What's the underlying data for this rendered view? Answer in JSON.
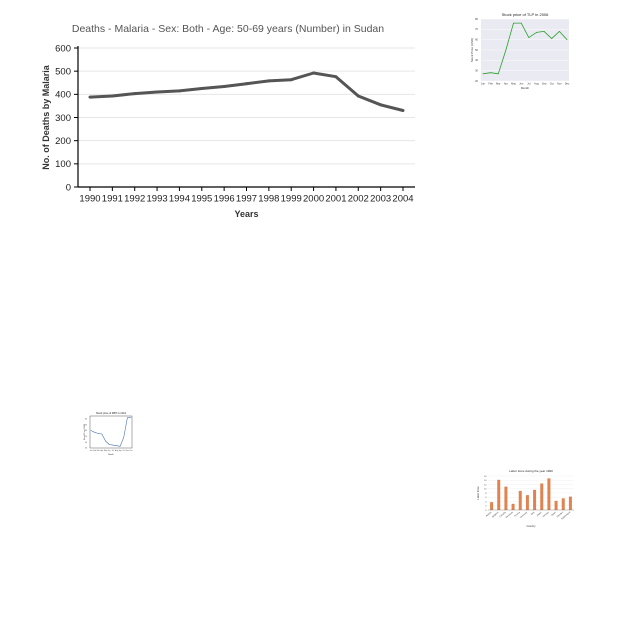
{
  "chart_data": [
    {
      "type": "line",
      "title": "Deaths - Malaria - Sex: Both - Age: 50-69 years (Number) in Sudan",
      "xlabel": "Years",
      "ylabel": "No. of Deaths by Malaria",
      "x": [
        "1990",
        "1991",
        "1992",
        "1993",
        "1994",
        "1995",
        "1996",
        "1997",
        "1998",
        "1999",
        "2000",
        "2001",
        "2002",
        "2003",
        "2004"
      ],
      "series": [
        {
          "values": [
            388,
            393,
            403,
            410,
            415,
            425,
            434,
            446,
            458,
            463,
            492,
            476,
            393,
            355,
            330
          ]
        }
      ],
      "ylim": [
        0,
        600
      ],
      "yticks": [
        "0",
        "100",
        "200",
        "300",
        "400",
        "500",
        "600"
      ],
      "grid": true,
      "colors": {
        "line": "#555555",
        "grid": "#e6e6e6",
        "axis": "#000000",
        "title": "#555555"
      }
    },
    {
      "type": "line",
      "title": "Stock price of TLP in 2006",
      "xlabel": "Month",
      "ylabel": "Stock Price (USD)",
      "x": [
        "Jan",
        "Feb",
        "Mar",
        "Apr",
        "May",
        "Jun",
        "Jul",
        "Aug",
        "Sep",
        "Oct",
        "Nov",
        "Dec"
      ],
      "series": [
        {
          "values": [
            27,
            28,
            27,
            50,
            76,
            76,
            62,
            67,
            68,
            61,
            68,
            60
          ]
        }
      ],
      "ylim": [
        20,
        80
      ],
      "yticks": [
        "20",
        "30",
        "40",
        "50",
        "60",
        "70",
        "80"
      ],
      "grid": true,
      "colors": {
        "line": "#2ca02c",
        "grid": "#ffffff",
        "background": "#eaeaf2"
      }
    },
    {
      "type": "line",
      "title": "Stock price of MBT in 2012",
      "xlabel": "Month",
      "ylabel": "Stock Price (USD)",
      "x": [
        "Jan",
        "Feb",
        "Mar",
        "Apr",
        "May",
        "Jun",
        "Jul",
        "Aug",
        "Sep",
        "Oct",
        "Nov",
        "Dec"
      ],
      "series": [
        {
          "values": [
            60,
            57,
            55,
            54,
            42,
            36,
            35,
            34,
            33,
            48,
            82,
            82
          ]
        }
      ],
      "ylim": [
        30,
        85
      ],
      "yticks": [
        "30",
        "40",
        "50",
        "60",
        "70",
        "80"
      ],
      "grid": false,
      "colors": {
        "line": "#4c72b0"
      }
    },
    {
      "type": "bar",
      "title": "Labor force during the year 1990",
      "xlabel": "Country",
      "ylabel": "Labor force",
      "categories": [
        "Austria",
        "Belgium",
        "Canada",
        "Denmark",
        "France",
        "Germany",
        "Italy",
        "Japan",
        "Norway",
        "Spain",
        "Sweden",
        "Switzerland"
      ],
      "values": [
        3.7,
        14.2,
        11.0,
        2.9,
        9.0,
        7.0,
        9.5,
        12.5,
        14.9,
        4.3,
        5.5,
        6.3
      ],
      "ylim": [
        0,
        16
      ],
      "yticks": [
        "0",
        "2",
        "4",
        "6",
        "8",
        "10",
        "12",
        "14",
        "16"
      ],
      "grid": true,
      "colors": {
        "bar": "#dd8452",
        "grid": "#e6e6e6"
      }
    }
  ]
}
